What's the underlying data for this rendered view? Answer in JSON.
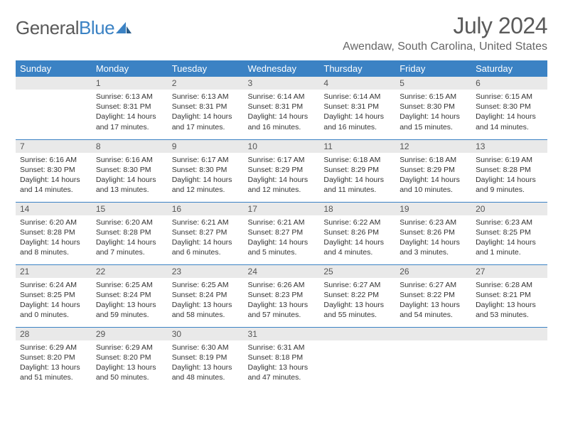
{
  "logo": {
    "part1": "General",
    "part2": "Blue"
  },
  "title": "July 2024",
  "location": "Awendaw, South Carolina, United States",
  "colors": {
    "header_bg": "#3b82c4",
    "row_divider": "#3b82c4",
    "daynum_bg": "#e9e9e9"
  },
  "weekdays": [
    "Sunday",
    "Monday",
    "Tuesday",
    "Wednesday",
    "Thursday",
    "Friday",
    "Saturday"
  ],
  "grid": [
    [
      {
        "n": "",
        "sr": "",
        "ss": "",
        "dl": ""
      },
      {
        "n": "1",
        "sr": "Sunrise: 6:13 AM",
        "ss": "Sunset: 8:31 PM",
        "dl": "Daylight: 14 hours and 17 minutes."
      },
      {
        "n": "2",
        "sr": "Sunrise: 6:13 AM",
        "ss": "Sunset: 8:31 PM",
        "dl": "Daylight: 14 hours and 17 minutes."
      },
      {
        "n": "3",
        "sr": "Sunrise: 6:14 AM",
        "ss": "Sunset: 8:31 PM",
        "dl": "Daylight: 14 hours and 16 minutes."
      },
      {
        "n": "4",
        "sr": "Sunrise: 6:14 AM",
        "ss": "Sunset: 8:31 PM",
        "dl": "Daylight: 14 hours and 16 minutes."
      },
      {
        "n": "5",
        "sr": "Sunrise: 6:15 AM",
        "ss": "Sunset: 8:30 PM",
        "dl": "Daylight: 14 hours and 15 minutes."
      },
      {
        "n": "6",
        "sr": "Sunrise: 6:15 AM",
        "ss": "Sunset: 8:30 PM",
        "dl": "Daylight: 14 hours and 14 minutes."
      }
    ],
    [
      {
        "n": "7",
        "sr": "Sunrise: 6:16 AM",
        "ss": "Sunset: 8:30 PM",
        "dl": "Daylight: 14 hours and 14 minutes."
      },
      {
        "n": "8",
        "sr": "Sunrise: 6:16 AM",
        "ss": "Sunset: 8:30 PM",
        "dl": "Daylight: 14 hours and 13 minutes."
      },
      {
        "n": "9",
        "sr": "Sunrise: 6:17 AM",
        "ss": "Sunset: 8:30 PM",
        "dl": "Daylight: 14 hours and 12 minutes."
      },
      {
        "n": "10",
        "sr": "Sunrise: 6:17 AM",
        "ss": "Sunset: 8:29 PM",
        "dl": "Daylight: 14 hours and 12 minutes."
      },
      {
        "n": "11",
        "sr": "Sunrise: 6:18 AM",
        "ss": "Sunset: 8:29 PM",
        "dl": "Daylight: 14 hours and 11 minutes."
      },
      {
        "n": "12",
        "sr": "Sunrise: 6:18 AM",
        "ss": "Sunset: 8:29 PM",
        "dl": "Daylight: 14 hours and 10 minutes."
      },
      {
        "n": "13",
        "sr": "Sunrise: 6:19 AM",
        "ss": "Sunset: 8:28 PM",
        "dl": "Daylight: 14 hours and 9 minutes."
      }
    ],
    [
      {
        "n": "14",
        "sr": "Sunrise: 6:20 AM",
        "ss": "Sunset: 8:28 PM",
        "dl": "Daylight: 14 hours and 8 minutes."
      },
      {
        "n": "15",
        "sr": "Sunrise: 6:20 AM",
        "ss": "Sunset: 8:28 PM",
        "dl": "Daylight: 14 hours and 7 minutes."
      },
      {
        "n": "16",
        "sr": "Sunrise: 6:21 AM",
        "ss": "Sunset: 8:27 PM",
        "dl": "Daylight: 14 hours and 6 minutes."
      },
      {
        "n": "17",
        "sr": "Sunrise: 6:21 AM",
        "ss": "Sunset: 8:27 PM",
        "dl": "Daylight: 14 hours and 5 minutes."
      },
      {
        "n": "18",
        "sr": "Sunrise: 6:22 AM",
        "ss": "Sunset: 8:26 PM",
        "dl": "Daylight: 14 hours and 4 minutes."
      },
      {
        "n": "19",
        "sr": "Sunrise: 6:23 AM",
        "ss": "Sunset: 8:26 PM",
        "dl": "Daylight: 14 hours and 3 minutes."
      },
      {
        "n": "20",
        "sr": "Sunrise: 6:23 AM",
        "ss": "Sunset: 8:25 PM",
        "dl": "Daylight: 14 hours and 1 minute."
      }
    ],
    [
      {
        "n": "21",
        "sr": "Sunrise: 6:24 AM",
        "ss": "Sunset: 8:25 PM",
        "dl": "Daylight: 14 hours and 0 minutes."
      },
      {
        "n": "22",
        "sr": "Sunrise: 6:25 AM",
        "ss": "Sunset: 8:24 PM",
        "dl": "Daylight: 13 hours and 59 minutes."
      },
      {
        "n": "23",
        "sr": "Sunrise: 6:25 AM",
        "ss": "Sunset: 8:24 PM",
        "dl": "Daylight: 13 hours and 58 minutes."
      },
      {
        "n": "24",
        "sr": "Sunrise: 6:26 AM",
        "ss": "Sunset: 8:23 PM",
        "dl": "Daylight: 13 hours and 57 minutes."
      },
      {
        "n": "25",
        "sr": "Sunrise: 6:27 AM",
        "ss": "Sunset: 8:22 PM",
        "dl": "Daylight: 13 hours and 55 minutes."
      },
      {
        "n": "26",
        "sr": "Sunrise: 6:27 AM",
        "ss": "Sunset: 8:22 PM",
        "dl": "Daylight: 13 hours and 54 minutes."
      },
      {
        "n": "27",
        "sr": "Sunrise: 6:28 AM",
        "ss": "Sunset: 8:21 PM",
        "dl": "Daylight: 13 hours and 53 minutes."
      }
    ],
    [
      {
        "n": "28",
        "sr": "Sunrise: 6:29 AM",
        "ss": "Sunset: 8:20 PM",
        "dl": "Daylight: 13 hours and 51 minutes."
      },
      {
        "n": "29",
        "sr": "Sunrise: 6:29 AM",
        "ss": "Sunset: 8:20 PM",
        "dl": "Daylight: 13 hours and 50 minutes."
      },
      {
        "n": "30",
        "sr": "Sunrise: 6:30 AM",
        "ss": "Sunset: 8:19 PM",
        "dl": "Daylight: 13 hours and 48 minutes."
      },
      {
        "n": "31",
        "sr": "Sunrise: 6:31 AM",
        "ss": "Sunset: 8:18 PM",
        "dl": "Daylight: 13 hours and 47 minutes."
      },
      {
        "n": "",
        "sr": "",
        "ss": "",
        "dl": ""
      },
      {
        "n": "",
        "sr": "",
        "ss": "",
        "dl": ""
      },
      {
        "n": "",
        "sr": "",
        "ss": "",
        "dl": ""
      }
    ]
  ]
}
